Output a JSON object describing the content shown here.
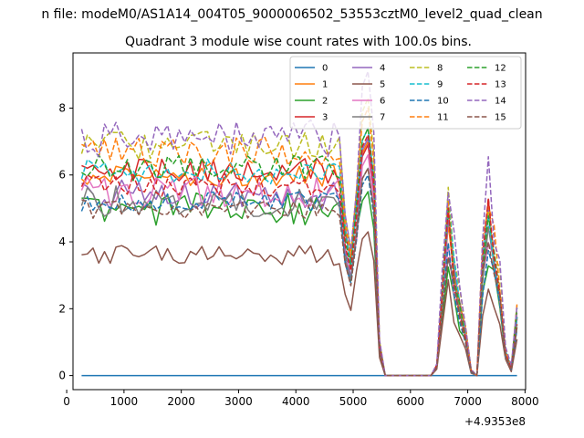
{
  "chart_data": {
    "type": "line",
    "suptitle": "n file: modeM0/AS1A14_004T05_9000006502_53553cztM0_level2_quad_clean",
    "title": "Quadrant 3 module wise count rates with 100.0s bins.",
    "xlabel": "",
    "ylabel": "",
    "x_offset_label": "+4.9353e8",
    "xlim": [
      110,
      8010
    ],
    "ylim": [
      -0.42,
      9.65
    ],
    "x_ticks": [
      0,
      1000,
      2000,
      3000,
      4000,
      5000,
      6000,
      7000,
      8000
    ],
    "y_ticks": [
      0,
      2,
      4,
      6,
      8
    ],
    "grid": false,
    "legend": {
      "placement": "top-right",
      "ncol": 4
    },
    "x": [
      260,
      360,
      460,
      560,
      660,
      760,
      860,
      960,
      1060,
      1160,
      1260,
      1360,
      1460,
      1560,
      1660,
      1760,
      1860,
      1960,
      2060,
      2160,
      2260,
      2360,
      2460,
      2560,
      2660,
      2760,
      2860,
      2960,
      3060,
      3160,
      3260,
      3360,
      3460,
      3560,
      3660,
      3760,
      3860,
      3960,
      4060,
      4160,
      4260,
      4360,
      4460,
      4560,
      4660,
      4760,
      4860,
      4960,
      5060,
      5160,
      5260,
      5360,
      5460,
      5560,
      6360,
      6460,
      6560,
      6660,
      6760,
      6860,
      6960,
      7060,
      7160,
      7260,
      7360,
      7460,
      7560,
      7660,
      7760,
      7860
    ],
    "series": [
      {
        "name": "0",
        "color": "#1f77b4",
        "style": "solid",
        "base": 0,
        "amp": 0,
        "peak": 0,
        "seed": 0
      },
      {
        "name": "1",
        "color": "#ff7f0e",
        "style": "solid",
        "base": 6.0,
        "amp": 0.35,
        "peak": 7.0,
        "seed": 1
      },
      {
        "name": "2",
        "color": "#2ca02c",
        "style": "solid",
        "base": 5.0,
        "amp": 0.5,
        "peak": 5.5,
        "seed": 2
      },
      {
        "name": "3",
        "color": "#d62728",
        "style": "solid",
        "base": 6.1,
        "amp": 0.4,
        "peak": 6.9,
        "seed": 3
      },
      {
        "name": "4",
        "color": "#9467bd",
        "style": "solid",
        "base": 5.4,
        "amp": 0.45,
        "peak": 7.1,
        "seed": 4
      },
      {
        "name": "5",
        "color": "#8c564b",
        "style": "solid",
        "base": 3.6,
        "amp": 0.3,
        "peak": 4.3,
        "seed": 5
      },
      {
        "name": "6",
        "color": "#e377c2",
        "style": "solid",
        "base": 5.5,
        "amp": 0.45,
        "peak": 6.6,
        "seed": 6
      },
      {
        "name": "7",
        "color": "#7f7f7f",
        "style": "solid",
        "base": 5.2,
        "amp": 0.5,
        "peak": 6.2,
        "seed": 7
      },
      {
        "name": "8",
        "color": "#bcbd22",
        "style": "dashed",
        "base": 6.9,
        "amp": 0.45,
        "peak": 8.3,
        "seed": 8
      },
      {
        "name": "9",
        "color": "#17becf",
        "style": "dashed",
        "base": 6.1,
        "amp": 0.4,
        "peak": 7.4,
        "seed": 9
      },
      {
        "name": "10",
        "color": "#1f77b4",
        "style": "dashed",
        "base": 5.2,
        "amp": 0.3,
        "peak": 6.0,
        "seed": 10
      },
      {
        "name": "11",
        "color": "#ff7f0e",
        "style": "dashed",
        "base": 6.7,
        "amp": 0.45,
        "peak": 8.0,
        "seed": 11
      },
      {
        "name": "12",
        "color": "#2ca02c",
        "style": "dashed",
        "base": 6.2,
        "amp": 0.4,
        "peak": 7.4,
        "seed": 12
      },
      {
        "name": "13",
        "color": "#d62728",
        "style": "dashed",
        "base": 5.7,
        "amp": 0.35,
        "peak": 7.2,
        "seed": 13
      },
      {
        "name": "14",
        "color": "#9467bd",
        "style": "dashed",
        "base": 7.1,
        "amp": 0.55,
        "peak": 9.1,
        "seed": 14
      },
      {
        "name": "15",
        "color": "#8c564b",
        "style": "dashed",
        "base": 5.0,
        "amp": 0.3,
        "peak": 6.2,
        "seed": 15
      }
    ]
  }
}
